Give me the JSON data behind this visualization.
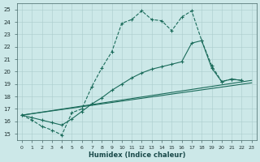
{
  "xlabel": "Humidex (Indice chaleur)",
  "xlim": [
    -0.5,
    23.5
  ],
  "ylim": [
    14.5,
    25.5
  ],
  "xticks": [
    0,
    1,
    2,
    3,
    4,
    5,
    6,
    7,
    8,
    9,
    10,
    11,
    12,
    13,
    14,
    15,
    16,
    17,
    18,
    19,
    20,
    21,
    22,
    23
  ],
  "yticks": [
    15,
    16,
    17,
    18,
    19,
    20,
    21,
    22,
    23,
    24,
    25
  ],
  "bg_color": "#cce8e8",
  "grid_color": "#aacccc",
  "line_color": "#1a6b5a",
  "line1_x": [
    0,
    1,
    2,
    3,
    4,
    5,
    6,
    7,
    8,
    9,
    10,
    11,
    12,
    13,
    14,
    15,
    16,
    17,
    18,
    19,
    20,
    21,
    22
  ],
  "line1_y": [
    16.5,
    16.1,
    15.6,
    15.3,
    14.9,
    16.7,
    17.0,
    18.8,
    20.3,
    21.6,
    23.9,
    24.2,
    24.9,
    24.2,
    24.1,
    23.3,
    24.4,
    24.9,
    22.5,
    20.5,
    19.2,
    19.4,
    19.3
  ],
  "line2_x": [
    0,
    1,
    2,
    3,
    4,
    5,
    6,
    7,
    8,
    9,
    10,
    11,
    12,
    13,
    14,
    15,
    16,
    17,
    18,
    19,
    20,
    21,
    22
  ],
  "line2_y": [
    16.5,
    16.3,
    16.1,
    15.9,
    15.7,
    16.2,
    16.8,
    17.4,
    17.9,
    18.5,
    19.0,
    19.5,
    19.9,
    20.2,
    20.4,
    20.6,
    20.8,
    22.3,
    22.5,
    20.3,
    19.2,
    19.4,
    19.3
  ],
  "line3_x": [
    0,
    23
  ],
  "line3_y": [
    16.5,
    19.3
  ],
  "line4_x": [
    0,
    23
  ],
  "line4_y": [
    16.5,
    19.1
  ]
}
